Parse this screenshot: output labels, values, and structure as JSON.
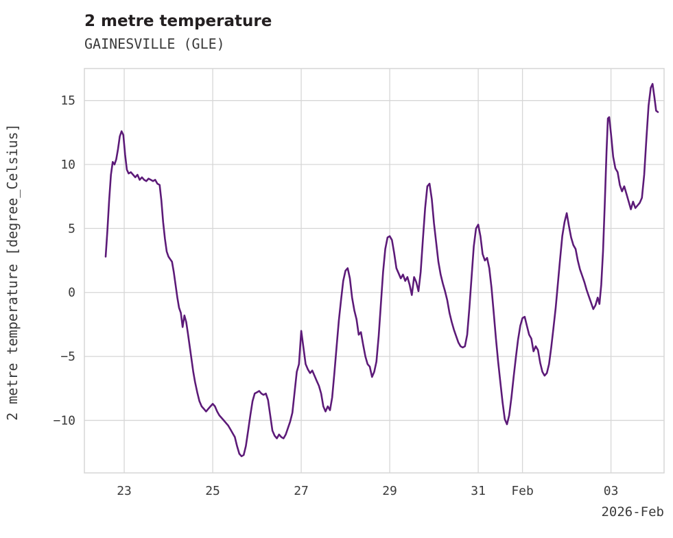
{
  "header": {
    "title": "2 metre temperature",
    "subtitle": "GAINESVILLE (GLE)"
  },
  "axes": {
    "ylabel": "2 metre temperature [degree_Celsius]",
    "corner_label": "2026-Feb"
  },
  "chart_data": {
    "type": "line",
    "title": "2 metre temperature",
    "subtitle": "GAINESVILLE (GLE)",
    "ylabel": "2 metre temperature [degree_Celsius]",
    "xlabel": "2026-Feb",
    "grid": true,
    "legend": "none",
    "line_color": "#5c1a78",
    "line_width": 2.6,
    "grid_color": "#d6d6d6",
    "text_color": "#3a3a3a",
    "xlim": [
      22.1,
      35.2
    ],
    "ylim": [
      -14.1,
      17.5
    ],
    "x_unit_note": "day number, January 2026 (32 = Feb 1, 34 = Feb 3)",
    "x_ticks": [
      {
        "value": 23,
        "label": "23"
      },
      {
        "value": 25,
        "label": "25"
      },
      {
        "value": 27,
        "label": "27"
      },
      {
        "value": 29,
        "label": "29"
      },
      {
        "value": 31,
        "label": "31"
      },
      {
        "value": 32,
        "label": "Feb"
      },
      {
        "value": 34,
        "label": "03"
      }
    ],
    "y_ticks": [
      {
        "value": 15,
        "label": "15"
      },
      {
        "value": 10,
        "label": "10"
      },
      {
        "value": 5,
        "label": "5"
      },
      {
        "value": 0,
        "label": "0"
      },
      {
        "value": -5,
        "label": "−5"
      },
      {
        "value": -10,
        "label": "−10"
      }
    ],
    "series": [
      {
        "name": "2 metre temperature [degree_Celsius]",
        "points": [
          [
            22.58,
            2.8
          ],
          [
            22.62,
            4.8
          ],
          [
            22.66,
            7.2
          ],
          [
            22.7,
            9.2
          ],
          [
            22.74,
            10.2
          ],
          [
            22.78,
            10.0
          ],
          [
            22.82,
            10.4
          ],
          [
            22.86,
            11.2
          ],
          [
            22.9,
            12.2
          ],
          [
            22.94,
            12.6
          ],
          [
            22.98,
            12.3
          ],
          [
            23.02,
            10.8
          ],
          [
            23.06,
            9.6
          ],
          [
            23.1,
            9.3
          ],
          [
            23.15,
            9.4
          ],
          [
            23.2,
            9.2
          ],
          [
            23.25,
            9.0
          ],
          [
            23.3,
            9.2
          ],
          [
            23.35,
            8.8
          ],
          [
            23.4,
            9.0
          ],
          [
            23.45,
            8.8
          ],
          [
            23.5,
            8.7
          ],
          [
            23.55,
            8.9
          ],
          [
            23.6,
            8.8
          ],
          [
            23.65,
            8.7
          ],
          [
            23.7,
            8.8
          ],
          [
            23.75,
            8.5
          ],
          [
            23.8,
            8.4
          ],
          [
            23.84,
            7.2
          ],
          [
            23.88,
            5.5
          ],
          [
            23.92,
            4.2
          ],
          [
            23.96,
            3.2
          ],
          [
            24.0,
            2.8
          ],
          [
            24.04,
            2.6
          ],
          [
            24.08,
            2.4
          ],
          [
            24.12,
            1.6
          ],
          [
            24.16,
            0.6
          ],
          [
            24.2,
            -0.4
          ],
          [
            24.24,
            -1.2
          ],
          [
            24.28,
            -1.6
          ],
          [
            24.32,
            -2.7
          ],
          [
            24.36,
            -1.8
          ],
          [
            24.4,
            -2.3
          ],
          [
            24.44,
            -3.2
          ],
          [
            24.48,
            -4.2
          ],
          [
            24.52,
            -5.2
          ],
          [
            24.56,
            -6.2
          ],
          [
            24.6,
            -7.0
          ],
          [
            24.65,
            -7.8
          ],
          [
            24.7,
            -8.5
          ],
          [
            24.75,
            -8.9
          ],
          [
            24.8,
            -9.1
          ],
          [
            24.85,
            -9.3
          ],
          [
            24.9,
            -9.1
          ],
          [
            24.95,
            -8.9
          ],
          [
            25.0,
            -8.7
          ],
          [
            25.05,
            -8.9
          ],
          [
            25.1,
            -9.3
          ],
          [
            25.15,
            -9.6
          ],
          [
            25.2,
            -9.8
          ],
          [
            25.25,
            -10.0
          ],
          [
            25.3,
            -10.2
          ],
          [
            25.35,
            -10.4
          ],
          [
            25.4,
            -10.7
          ],
          [
            25.45,
            -11.0
          ],
          [
            25.5,
            -11.3
          ],
          [
            25.55,
            -12.0
          ],
          [
            25.6,
            -12.6
          ],
          [
            25.65,
            -12.8
          ],
          [
            25.7,
            -12.7
          ],
          [
            25.75,
            -12.0
          ],
          [
            25.8,
            -10.8
          ],
          [
            25.85,
            -9.6
          ],
          [
            25.9,
            -8.5
          ],
          [
            25.95,
            -7.9
          ],
          [
            26.0,
            -7.8
          ],
          [
            26.05,
            -7.7
          ],
          [
            26.1,
            -7.9
          ],
          [
            26.15,
            -8.0
          ],
          [
            26.2,
            -7.9
          ],
          [
            26.25,
            -8.4
          ],
          [
            26.3,
            -9.6
          ],
          [
            26.35,
            -10.8
          ],
          [
            26.4,
            -11.2
          ],
          [
            26.45,
            -11.4
          ],
          [
            26.5,
            -11.1
          ],
          [
            26.55,
            -11.3
          ],
          [
            26.6,
            -11.4
          ],
          [
            26.65,
            -11.1
          ],
          [
            26.7,
            -10.6
          ],
          [
            26.75,
            -10.1
          ],
          [
            26.8,
            -9.4
          ],
          [
            26.85,
            -7.8
          ],
          [
            26.9,
            -6.2
          ],
          [
            26.95,
            -5.6
          ],
          [
            27.0,
            -3.0
          ],
          [
            27.05,
            -4.3
          ],
          [
            27.1,
            -5.6
          ],
          [
            27.15,
            -6.0
          ],
          [
            27.2,
            -6.3
          ],
          [
            27.25,
            -6.1
          ],
          [
            27.3,
            -6.5
          ],
          [
            27.35,
            -6.9
          ],
          [
            27.4,
            -7.3
          ],
          [
            27.45,
            -7.9
          ],
          [
            27.5,
            -8.9
          ],
          [
            27.55,
            -9.3
          ],
          [
            27.6,
            -8.9
          ],
          [
            27.65,
            -9.2
          ],
          [
            27.7,
            -8.2
          ],
          [
            27.75,
            -6.3
          ],
          [
            27.8,
            -4.2
          ],
          [
            27.85,
            -2.2
          ],
          [
            27.9,
            -0.6
          ],
          [
            27.95,
            0.9
          ],
          [
            28.0,
            1.7
          ],
          [
            28.05,
            1.9
          ],
          [
            28.1,
            1.1
          ],
          [
            28.15,
            -0.4
          ],
          [
            28.2,
            -1.4
          ],
          [
            28.25,
            -2.1
          ],
          [
            28.3,
            -3.3
          ],
          [
            28.35,
            -3.1
          ],
          [
            28.4,
            -4.1
          ],
          [
            28.45,
            -5.0
          ],
          [
            28.5,
            -5.6
          ],
          [
            28.55,
            -5.8
          ],
          [
            28.6,
            -6.6
          ],
          [
            28.65,
            -6.2
          ],
          [
            28.7,
            -5.4
          ],
          [
            28.75,
            -3.4
          ],
          [
            28.8,
            -0.9
          ],
          [
            28.85,
            1.6
          ],
          [
            28.9,
            3.4
          ],
          [
            28.95,
            4.3
          ],
          [
            29.0,
            4.4
          ],
          [
            29.05,
            4.1
          ],
          [
            29.1,
            3.1
          ],
          [
            29.15,
            1.9
          ],
          [
            29.2,
            1.5
          ],
          [
            29.25,
            1.1
          ],
          [
            29.3,
            1.4
          ],
          [
            29.35,
            0.9
          ],
          [
            29.4,
            1.2
          ],
          [
            29.45,
            0.6
          ],
          [
            29.5,
            -0.2
          ],
          [
            29.55,
            1.2
          ],
          [
            29.6,
            0.8
          ],
          [
            29.65,
            0.1
          ],
          [
            29.7,
            1.6
          ],
          [
            29.75,
            4.2
          ],
          [
            29.8,
            6.6
          ],
          [
            29.85,
            8.3
          ],
          [
            29.9,
            8.5
          ],
          [
            29.95,
            7.3
          ],
          [
            30.0,
            5.4
          ],
          [
            30.05,
            3.9
          ],
          [
            30.1,
            2.4
          ],
          [
            30.15,
            1.4
          ],
          [
            30.2,
            0.7
          ],
          [
            30.25,
            0.1
          ],
          [
            30.3,
            -0.6
          ],
          [
            30.35,
            -1.6
          ],
          [
            30.4,
            -2.3
          ],
          [
            30.45,
            -2.9
          ],
          [
            30.5,
            -3.4
          ],
          [
            30.55,
            -3.9
          ],
          [
            30.6,
            -4.2
          ],
          [
            30.65,
            -4.3
          ],
          [
            30.7,
            -4.2
          ],
          [
            30.75,
            -3.3
          ],
          [
            30.8,
            -1.2
          ],
          [
            30.85,
            1.2
          ],
          [
            30.9,
            3.6
          ],
          [
            30.95,
            5.0
          ],
          [
            31.0,
            5.3
          ],
          [
            31.05,
            4.4
          ],
          [
            31.1,
            3.0
          ],
          [
            31.15,
            2.5
          ],
          [
            31.2,
            2.7
          ],
          [
            31.25,
            1.9
          ],
          [
            31.3,
            0.4
          ],
          [
            31.35,
            -1.6
          ],
          [
            31.4,
            -3.6
          ],
          [
            31.45,
            -5.4
          ],
          [
            31.5,
            -7.0
          ],
          [
            31.55,
            -8.6
          ],
          [
            31.6,
            -9.9
          ],
          [
            31.65,
            -10.3
          ],
          [
            31.7,
            -9.6
          ],
          [
            31.75,
            -8.2
          ],
          [
            31.8,
            -6.6
          ],
          [
            31.85,
            -5.1
          ],
          [
            31.9,
            -3.7
          ],
          [
            31.95,
            -2.6
          ],
          [
            32.0,
            -2.0
          ],
          [
            32.05,
            -1.9
          ],
          [
            32.1,
            -2.6
          ],
          [
            32.15,
            -3.3
          ],
          [
            32.2,
            -3.6
          ],
          [
            32.25,
            -4.6
          ],
          [
            32.3,
            -4.2
          ],
          [
            32.35,
            -4.5
          ],
          [
            32.4,
            -5.5
          ],
          [
            32.45,
            -6.2
          ],
          [
            32.5,
            -6.5
          ],
          [
            32.55,
            -6.3
          ],
          [
            32.6,
            -5.6
          ],
          [
            32.65,
            -4.3
          ],
          [
            32.7,
            -2.8
          ],
          [
            32.75,
            -1.2
          ],
          [
            32.8,
            0.7
          ],
          [
            32.85,
            2.6
          ],
          [
            32.9,
            4.4
          ],
          [
            32.95,
            5.5
          ],
          [
            33.0,
            6.2
          ],
          [
            33.05,
            5.2
          ],
          [
            33.1,
            4.3
          ],
          [
            33.15,
            3.7
          ],
          [
            33.2,
            3.4
          ],
          [
            33.25,
            2.5
          ],
          [
            33.3,
            1.8
          ],
          [
            33.35,
            1.3
          ],
          [
            33.4,
            0.8
          ],
          [
            33.45,
            0.2
          ],
          [
            33.5,
            -0.3
          ],
          [
            33.55,
            -0.8
          ],
          [
            33.6,
            -1.3
          ],
          [
            33.65,
            -1.0
          ],
          [
            33.7,
            -0.4
          ],
          [
            33.74,
            -0.9
          ],
          [
            33.78,
            0.6
          ],
          [
            33.82,
            3.2
          ],
          [
            33.86,
            7.0
          ],
          [
            33.9,
            11.0
          ],
          [
            33.93,
            13.6
          ],
          [
            33.96,
            13.7
          ],
          [
            34.0,
            12.4
          ],
          [
            34.05,
            10.6
          ],
          [
            34.1,
            9.7
          ],
          [
            34.15,
            9.4
          ],
          [
            34.2,
            8.4
          ],
          [
            34.25,
            7.9
          ],
          [
            34.3,
            8.3
          ],
          [
            34.35,
            7.7
          ],
          [
            34.4,
            7.1
          ],
          [
            34.45,
            6.5
          ],
          [
            34.5,
            7.1
          ],
          [
            34.55,
            6.6
          ],
          [
            34.6,
            6.8
          ],
          [
            34.65,
            7.0
          ],
          [
            34.7,
            7.4
          ],
          [
            34.75,
            9.2
          ],
          [
            34.8,
            12.0
          ],
          [
            34.85,
            14.6
          ],
          [
            34.9,
            16.0
          ],
          [
            34.94,
            16.3
          ],
          [
            34.98,
            15.3
          ],
          [
            35.02,
            14.2
          ],
          [
            35.06,
            14.1
          ]
        ]
      }
    ]
  }
}
